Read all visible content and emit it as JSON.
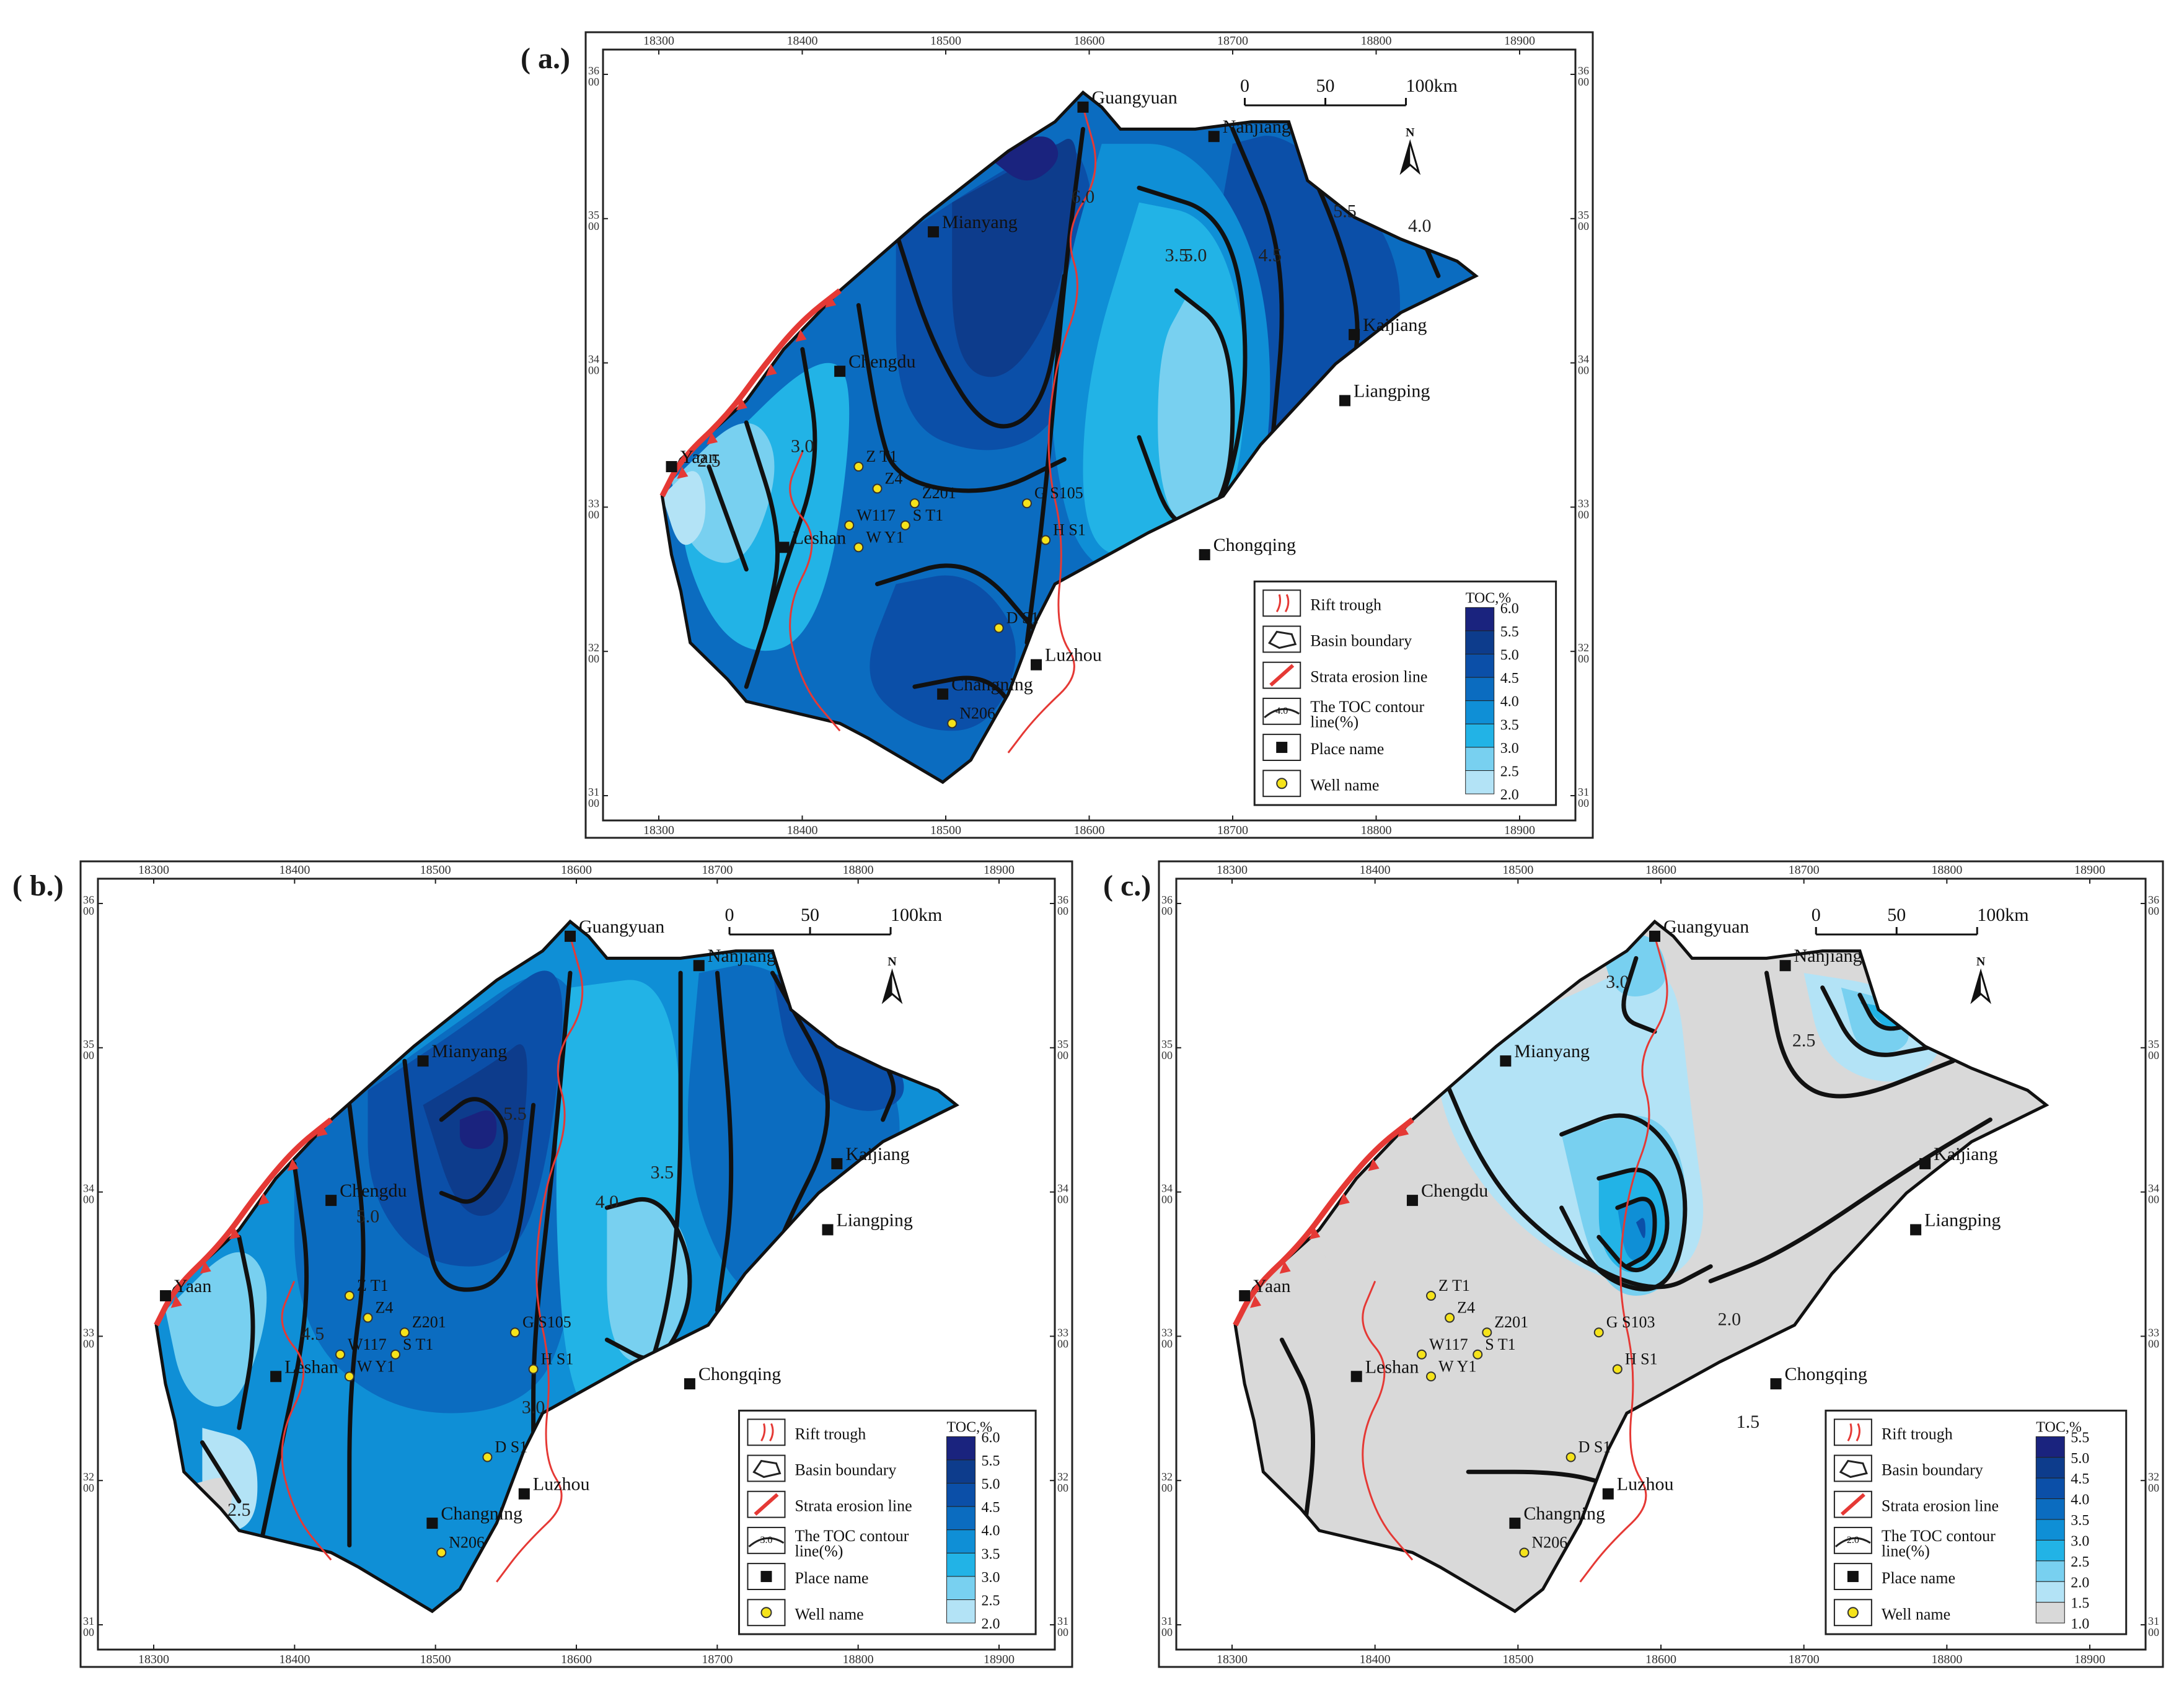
{
  "panels": [
    {
      "id": "a",
      "label": "( a.)",
      "ticks_x": [
        "18300",
        "18400",
        "18500",
        "18600",
        "18700",
        "18800",
        "18900"
      ],
      "ticks_y": [
        "36\n00",
        "35\n00",
        "34\n00",
        "33\n00",
        "32\n00",
        "31\n00"
      ],
      "places": [
        "Guangyuan",
        "Nanjiang",
        "Mianyang",
        "Kaijiang",
        "Chengdu",
        "Liangping",
        "Yaan",
        "Leshan",
        "Chongqing",
        "Luzhou",
        "Changning"
      ],
      "wells": [
        "Z T1",
        "Z4",
        "Z201",
        "W117",
        "S T1",
        "W Y1",
        "G S105",
        "H S1",
        "D S1",
        "N206"
      ],
      "contours": [
        "6.0",
        "5.5",
        "5.0",
        "4.5",
        "4.0",
        "3.5",
        "3.0",
        "2.5"
      ],
      "legend": {
        "items": [
          "Rift trough",
          "Basin boundary",
          "Strata erosion line",
          "The TOC contour line(%)",
          "Place name",
          "Well  name"
        ],
        "contour_sample": "4.0",
        "scale_title": "TOC,%",
        "scale_values": [
          "6.0",
          "5.5",
          "5.0",
          "4.5",
          "4.0",
          "3.5",
          "3.0",
          "2.5",
          "2.0"
        ]
      }
    },
    {
      "id": "b",
      "label": "( b.)",
      "ticks_x": [
        "18300",
        "18400",
        "18500",
        "18600",
        "18700",
        "18800",
        "18900"
      ],
      "ticks_y": [
        "36\n00",
        "35\n00",
        "34\n00",
        "33\n00",
        "32\n00",
        "31\n00"
      ],
      "places": [
        "Guangyuan",
        "Nanjiang",
        "Mianyang",
        "Kaijiang",
        "Chengdu",
        "Liangping",
        "Yaan",
        "Leshan",
        "Chongqing",
        "Luzhou",
        "Changning"
      ],
      "wells": [
        "Z T1",
        "Z4",
        "Z201",
        "W117",
        "S T1",
        "W Y1",
        "G S105",
        "H S1",
        "D S1",
        "N206"
      ],
      "contours": [
        "5.5",
        "5.0",
        "4.5",
        "4.0",
        "3.5",
        "3.0",
        "2.5"
      ],
      "legend": {
        "items": [
          "Rift trough",
          "Basin boundary",
          "Strata erosion line",
          "The TOC contour line(%)",
          "Place name",
          "Well  name"
        ],
        "contour_sample": "3.0",
        "scale_title": "TOC,%",
        "scale_values": [
          "6.0",
          "5.5",
          "5.0",
          "4.5",
          "4.0",
          "3.5",
          "3.0",
          "2.5",
          "2.0"
        ]
      }
    },
    {
      "id": "c",
      "label": "( c.)",
      "ticks_x": [
        "18300",
        "18400",
        "18500",
        "18600",
        "18700",
        "18800",
        "18900"
      ],
      "ticks_y": [
        "36\n00",
        "35\n00",
        "34\n00",
        "33\n00",
        "32\n00",
        "31\n00"
      ],
      "places": [
        "Guangyuan",
        "Nanjiang",
        "Mianyang",
        "Kaijiang",
        "Chengdu",
        "Liangping",
        "Yaan",
        "Leshan",
        "Chongqing",
        "Luzhou",
        "Changning"
      ],
      "wells": [
        "Z T1",
        "Z4",
        "Z201",
        "W117",
        "S T1",
        "W Y1",
        "G S103",
        "H S1",
        "D S1",
        "N206"
      ],
      "contours": [
        "3.0",
        "2.5",
        "2.0",
        "1.5"
      ],
      "legend": {
        "items": [
          "Rift trough",
          "Basin boundary",
          "Strata erosion line",
          "The TOC contour line(%)",
          "Place name",
          "Well  name"
        ],
        "contour_sample": "2.0",
        "scale_title": "TOC,%",
        "scale_values": [
          "5.5",
          "5.0",
          "4.5",
          "4.0",
          "3.5",
          "3.0",
          "2.5",
          "2.0",
          "1.5",
          "1.0"
        ]
      }
    }
  ],
  "scale_bar": {
    "labels": [
      "0",
      "50",
      "100km"
    ]
  },
  "north_label": "N",
  "colors": {
    "toc_6_0": "#1a237e",
    "toc_5_5": "#0d3c8c",
    "toc_5_0": "#0b4fa8",
    "toc_4_5": "#0b6cc0",
    "toc_4_0": "#0f8fd6",
    "toc_3_5": "#22b3e6",
    "toc_3_0": "#78d0f0",
    "toc_2_5": "#b3e3f6",
    "toc_2_0": "#d9d9d9",
    "rift_trough": "#e53935",
    "erosion_line": "#e53935",
    "contour": "#111111"
  }
}
